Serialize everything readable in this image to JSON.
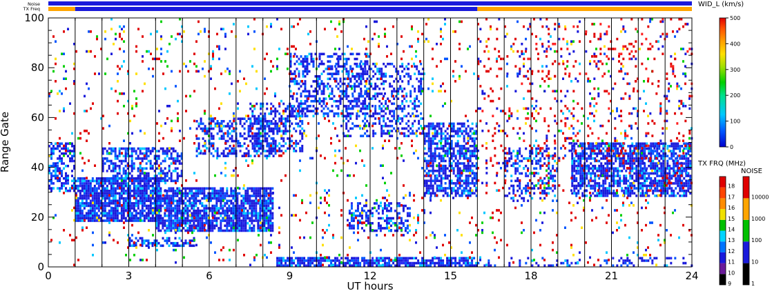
{
  "header": {
    "noise_label": "Noise",
    "txfreq_label": "TX Freq"
  },
  "chart_data": {
    "type": "heatmap",
    "title": "",
    "xlabel": "UT hours",
    "ylabel": "Range Gate",
    "xlim": [
      0,
      24
    ],
    "ylim": [
      0,
      100
    ],
    "x_ticks": [
      0,
      3,
      6,
      9,
      12,
      15,
      18,
      21,
      24
    ],
    "y_ticks": [
      0,
      20,
      40,
      60,
      80,
      100
    ],
    "scan_boundaries_hours": [
      1,
      2,
      3,
      4,
      5,
      6,
      7,
      8,
      9,
      10,
      11,
      12,
      13,
      14,
      15,
      16,
      17,
      18,
      19,
      20,
      21,
      22,
      23,
      24
    ],
    "main_colorbar": {
      "label": "WID_L (km/s)",
      "range": [
        0,
        500
      ],
      "ticks": [
        0,
        100,
        200,
        300,
        400,
        500
      ]
    },
    "txfreq_colorbar": {
      "label": "TX FRQ (MHz)",
      "ticks": [
        9,
        10,
        11,
        12,
        13,
        14,
        15,
        16,
        17,
        18
      ],
      "colors": [
        "#000000",
        "#6a1b9a",
        "#1a1adb",
        "#0074ff",
        "#00d4ff",
        "#00c000",
        "#f0e000",
        "#ff8c00",
        "#ff4400",
        "#e00000"
      ]
    },
    "noise_colorbar": {
      "label": "NOISE",
      "ticks": [
        1,
        10,
        100,
        1000,
        10000
      ],
      "colors": [
        "#000000",
        "#1a1adb",
        "#00c000",
        "#ffa500",
        "#e00000"
      ]
    },
    "tx_freq_bar": [
      {
        "from_hour": 0,
        "to_hour": 1,
        "color": "#ffa500"
      },
      {
        "from_hour": 1,
        "to_hour": 16,
        "color": "#1a1adb"
      },
      {
        "from_hour": 16,
        "to_hour": 24,
        "color": "#ffa500"
      }
    ],
    "noise_bar_color": "#1a1adb",
    "scatter_regions": [
      {
        "x": [
          0,
          1
        ],
        "y": [
          30,
          50
        ],
        "density": 0.55,
        "palette": "blue"
      },
      {
        "x": [
          1,
          4.2
        ],
        "y": [
          18,
          36
        ],
        "density": 0.85,
        "palette": "blue"
      },
      {
        "x": [
          2,
          5
        ],
        "y": [
          34,
          48
        ],
        "density": 0.55,
        "palette": "blue"
      },
      {
        "x": [
          4,
          8.4
        ],
        "y": [
          14,
          32
        ],
        "density": 0.8,
        "palette": "blue"
      },
      {
        "x": [
          3,
          5.5
        ],
        "y": [
          8,
          12
        ],
        "density": 0.55,
        "palette": "blue"
      },
      {
        "x": [
          5.5,
          8.5
        ],
        "y": [
          44,
          60
        ],
        "density": 0.45,
        "palette": "blue"
      },
      {
        "x": [
          7.5,
          9.5
        ],
        "y": [
          46,
          66
        ],
        "density": 0.4,
        "palette": "blue"
      },
      {
        "x": [
          9,
          12
        ],
        "y": [
          60,
          86
        ],
        "density": 0.38,
        "palette": "blue"
      },
      {
        "x": [
          11,
          14
        ],
        "y": [
          52,
          82
        ],
        "density": 0.35,
        "palette": "blue"
      },
      {
        "x": [
          11.2,
          13.5
        ],
        "y": [
          14,
          26
        ],
        "density": 0.45,
        "palette": "blue"
      },
      {
        "x": [
          14,
          16
        ],
        "y": [
          28,
          58
        ],
        "density": 0.6,
        "palette": "blue"
      },
      {
        "x": [
          8.5,
          16
        ],
        "y": [
          0,
          4
        ],
        "density": 0.75,
        "palette": "blue"
      },
      {
        "x": [
          16,
          24
        ],
        "y": [
          0,
          4
        ],
        "density": 0.2,
        "palette": "blue"
      },
      {
        "x": [
          17,
          19
        ],
        "y": [
          26,
          48
        ],
        "density": 0.35,
        "palette": "blue"
      },
      {
        "x": [
          19.5,
          24
        ],
        "y": [
          28,
          50
        ],
        "density": 0.7,
        "palette": "blue"
      },
      {
        "x": [
          0,
          24
        ],
        "y": [
          0,
          100
        ],
        "density": 0.045,
        "palette": "mixed"
      },
      {
        "x": [
          16,
          24
        ],
        "y": [
          30,
          100
        ],
        "density": 0.06,
        "palette": "red"
      }
    ]
  }
}
